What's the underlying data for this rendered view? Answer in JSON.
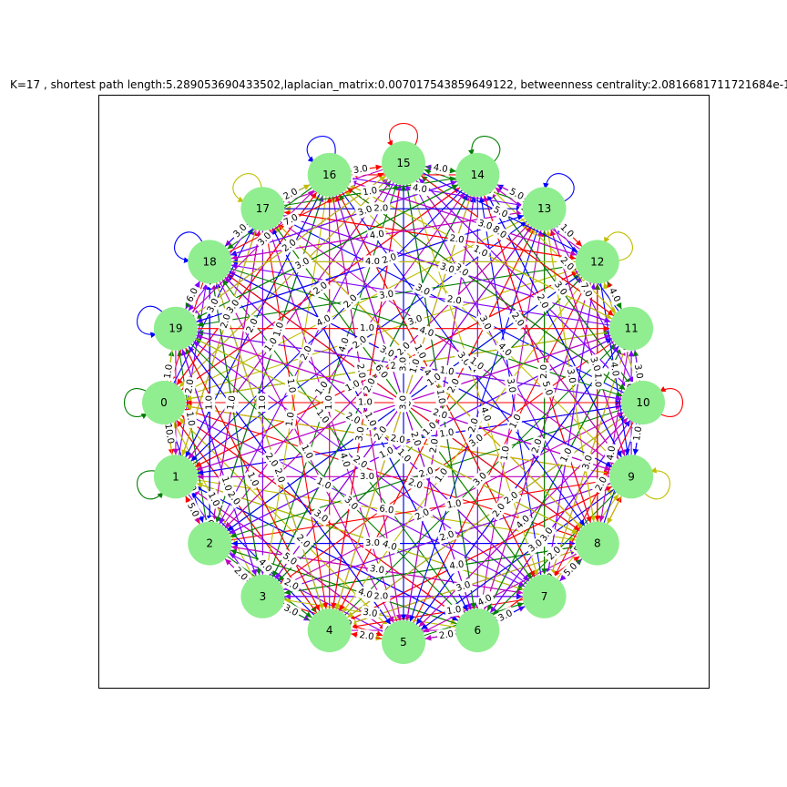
{
  "figure": {
    "title": "K=17 , shortest path length:5.289053690433502,laplacian_matrix:0.007017543859649122, betweenness centrality:2.0816681711721684e-1"
  },
  "graph": {
    "node_color": "#90ee90",
    "edge_colors": [
      "#ff0000",
      "#0000ff",
      "#008000",
      "#bfbf00",
      "#bf00bf",
      "#7f00ff"
    ],
    "nodes": [
      "0",
      "1",
      "2",
      "3",
      "4",
      "5",
      "6",
      "7",
      "8",
      "9",
      "10",
      "11",
      "12",
      "13",
      "14",
      "15",
      "16",
      "17",
      "18",
      "19"
    ],
    "self_loops": [
      {
        "node": "0",
        "color": "#008000"
      },
      {
        "node": "1",
        "color": "#008000"
      },
      {
        "node": "10",
        "color": "#ff0000"
      },
      {
        "node": "9",
        "color": "#bfbf00"
      },
      {
        "node": "13",
        "color": "#0000ff"
      },
      {
        "node": "12",
        "color": "#bfbf00"
      },
      {
        "node": "14",
        "color": "#008000"
      },
      {
        "node": "15",
        "color": "#ff0000"
      },
      {
        "node": "16",
        "color": "#0000ff"
      },
      {
        "node": "17",
        "color": "#bfbf00"
      },
      {
        "node": "18",
        "color": "#0000ff"
      },
      {
        "node": "19",
        "color": "#0000ff"
      }
    ],
    "edge_labels": [
      {
        "source": "16",
        "target": "15",
        "label": "3.0"
      },
      {
        "source": "15",
        "target": "14",
        "label": "4.0"
      },
      {
        "source": "14",
        "target": "13",
        "label": "5.0"
      },
      {
        "source": "13",
        "target": "12",
        "label": "1.0"
      },
      {
        "source": "12",
        "target": "11",
        "label": "4.0"
      },
      {
        "source": "11",
        "target": "10",
        "label": "3.0"
      },
      {
        "source": "10",
        "target": "9",
        "label": "1.0"
      },
      {
        "source": "8",
        "target": "7",
        "label": "5.0"
      },
      {
        "source": "7",
        "target": "6",
        "label": "3.0"
      },
      {
        "source": "6",
        "target": "5",
        "label": "2.0"
      },
      {
        "source": "5",
        "target": "4",
        "label": "2.0"
      },
      {
        "source": "4",
        "target": "3",
        "label": "3.0"
      },
      {
        "source": "3",
        "target": "2",
        "label": "2.0"
      },
      {
        "source": "2",
        "target": "1",
        "label": "5.0"
      },
      {
        "source": "1",
        "target": "0",
        "label": "10.0"
      },
      {
        "source": "0",
        "target": "19",
        "label": "1.0"
      },
      {
        "source": "19",
        "target": "18",
        "label": "6.0"
      },
      {
        "source": "18",
        "target": "17",
        "label": "3.0"
      },
      {
        "source": "17",
        "target": "16",
        "label": "2.0"
      },
      {
        "source": "16",
        "target": "14",
        "label": "2.0"
      },
      {
        "source": "15",
        "target": "13",
        "label": "3.0"
      },
      {
        "source": "14",
        "target": "12",
        "label": "2.0"
      },
      {
        "source": "13",
        "target": "11",
        "label": "1.0"
      },
      {
        "source": "12",
        "target": "10",
        "label": "1.0"
      },
      {
        "source": "11",
        "target": "9",
        "label": "3.0"
      },
      {
        "source": "10",
        "target": "8",
        "label": "2.0"
      },
      {
        "source": "9",
        "target": "7",
        "label": "5.0"
      },
      {
        "source": "8",
        "target": "6",
        "label": "1.0"
      },
      {
        "source": "7",
        "target": "5",
        "label": "5.0"
      },
      {
        "source": "6",
        "target": "4",
        "label": "4.0"
      },
      {
        "source": "5",
        "target": "3",
        "label": "2.0"
      },
      {
        "source": "4",
        "target": "2",
        "label": "2.0"
      },
      {
        "source": "3",
        "target": "1",
        "label": "6.0"
      },
      {
        "source": "2",
        "target": "0",
        "label": "4.0"
      },
      {
        "source": "1",
        "target": "19",
        "label": "2.0"
      },
      {
        "source": "0",
        "target": "18",
        "label": "3.0"
      },
      {
        "source": "19",
        "target": "17",
        "label": "2.0"
      },
      {
        "source": "18",
        "target": "16",
        "label": "4.0"
      },
      {
        "source": "17",
        "target": "15",
        "label": "1.0"
      },
      {
        "source": "16",
        "target": "13",
        "label": "4.0"
      },
      {
        "source": "15",
        "target": "12",
        "label": "5.0"
      },
      {
        "source": "14",
        "target": "11",
        "label": "2.0"
      },
      {
        "source": "13",
        "target": "10",
        "label": "7.0"
      },
      {
        "source": "12",
        "target": "9",
        "label": "4.0"
      },
      {
        "source": "11",
        "target": "8",
        "label": "4.0"
      },
      {
        "source": "10",
        "target": "7",
        "label": "2.0"
      },
      {
        "source": "9",
        "target": "6",
        "label": "2.0"
      },
      {
        "source": "8",
        "target": "5",
        "label": "4.0"
      },
      {
        "source": "7",
        "target": "4",
        "label": "1.0"
      },
      {
        "source": "6",
        "target": "3",
        "label": "3.0"
      },
      {
        "source": "5",
        "target": "2",
        "label": "2.0"
      },
      {
        "source": "4",
        "target": "1",
        "label": "4.0"
      },
      {
        "source": "3",
        "target": "0",
        "label": "1.0"
      },
      {
        "source": "2",
        "target": "19",
        "label": "1.0"
      },
      {
        "source": "1",
        "target": "18",
        "label": "2.0"
      },
      {
        "source": "0",
        "target": "17",
        "label": "3.0"
      },
      {
        "source": "19",
        "target": "16",
        "label": "3.0"
      },
      {
        "source": "18",
        "target": "15",
        "label": "7.0"
      },
      {
        "source": "17",
        "target": "14",
        "label": "1.0"
      },
      {
        "source": "16",
        "target": "12",
        "label": "3.0"
      },
      {
        "source": "15",
        "target": "11",
        "label": "8.0"
      },
      {
        "source": "14",
        "target": "10",
        "label": "3.0"
      },
      {
        "source": "13",
        "target": "9",
        "label": "3.0"
      },
      {
        "source": "12",
        "target": "8",
        "label": "1.0"
      },
      {
        "source": "11",
        "target": "7",
        "label": "3.0"
      },
      {
        "source": "10",
        "target": "6",
        "label": "3.0"
      },
      {
        "source": "9",
        "target": "5",
        "label": "3.0"
      },
      {
        "source": "8",
        "target": "4",
        "label": "3.0"
      },
      {
        "source": "7",
        "target": "3",
        "label": "2.0"
      },
      {
        "source": "6",
        "target": "2",
        "label": "4.0"
      },
      {
        "source": "5",
        "target": "1",
        "label": "5.0"
      },
      {
        "source": "4",
        "target": "0",
        "label": "2.0"
      },
      {
        "source": "3",
        "target": "19",
        "label": "1.0"
      },
      {
        "source": "2",
        "target": "18",
        "label": "1.0"
      },
      {
        "source": "1",
        "target": "17",
        "label": "2.0"
      },
      {
        "source": "0",
        "target": "16",
        "label": "3.0"
      },
      {
        "source": "19",
        "target": "15",
        "label": "2.0"
      },
      {
        "source": "18",
        "target": "14",
        "label": "3.0"
      },
      {
        "source": "17",
        "target": "13",
        "label": "2.0"
      },
      {
        "source": "16",
        "target": "11",
        "label": "1.0"
      },
      {
        "source": "15",
        "target": "10",
        "label": "6.0"
      },
      {
        "source": "14",
        "target": "9",
        "label": "2.0"
      },
      {
        "source": "13",
        "target": "8",
        "label": "3.0"
      },
      {
        "source": "12",
        "target": "7",
        "label": "4.0"
      },
      {
        "source": "11",
        "target": "6",
        "label": "1.0"
      },
      {
        "source": "10",
        "target": "5",
        "label": "4.0"
      },
      {
        "source": "9",
        "target": "4",
        "label": "2.0"
      },
      {
        "source": "8",
        "target": "3",
        "label": "4.0"
      },
      {
        "source": "7",
        "target": "2",
        "label": "3.0"
      },
      {
        "source": "6",
        "target": "1",
        "label": "2.0"
      },
      {
        "source": "5",
        "target": "0",
        "label": "2.0"
      },
      {
        "source": "4",
        "target": "19",
        "label": "1.0"
      },
      {
        "source": "3",
        "target": "18",
        "label": "2.0"
      },
      {
        "source": "2",
        "target": "17",
        "label": "1.0"
      },
      {
        "source": "1",
        "target": "16",
        "label": "2.0"
      },
      {
        "source": "0",
        "target": "15",
        "label": "1.0"
      },
      {
        "source": "19",
        "target": "14",
        "label": "3.0"
      },
      {
        "source": "18",
        "target": "13",
        "label": "4.0"
      },
      {
        "source": "17",
        "target": "12",
        "label": "2.0"
      },
      {
        "source": "16",
        "target": "10",
        "label": "3.0"
      },
      {
        "source": "15",
        "target": "9",
        "label": "2.0"
      },
      {
        "source": "14",
        "target": "8",
        "label": "5.0"
      },
      {
        "source": "13",
        "target": "7",
        "label": "2.0"
      },
      {
        "source": "12",
        "target": "6",
        "label": "2.0"
      },
      {
        "source": "11",
        "target": "5",
        "label": "2.0"
      },
      {
        "source": "10",
        "target": "4",
        "label": "2.0"
      },
      {
        "source": "9",
        "target": "3",
        "label": "2.0"
      },
      {
        "source": "8",
        "target": "2",
        "label": "3.0"
      },
      {
        "source": "7",
        "target": "1",
        "label": "4.0"
      },
      {
        "source": "6",
        "target": "0",
        "label": "3.0"
      },
      {
        "source": "5",
        "target": "19",
        "label": "2.0"
      },
      {
        "source": "4",
        "target": "18",
        "label": "2.0"
      },
      {
        "source": "3",
        "target": "17",
        "label": "1.0"
      },
      {
        "source": "2",
        "target": "16",
        "label": "1.0"
      },
      {
        "source": "1",
        "target": "15",
        "label": "1.0"
      },
      {
        "source": "0",
        "target": "14",
        "label": "2.0"
      },
      {
        "source": "19",
        "target": "13",
        "label": "2.0"
      },
      {
        "source": "18",
        "target": "12",
        "label": "4.0"
      },
      {
        "source": "17",
        "target": "11",
        "label": "3.0"
      },
      {
        "source": "16",
        "target": "9",
        "label": "4.0"
      },
      {
        "source": "15",
        "target": "8",
        "label": "3.0"
      },
      {
        "source": "14",
        "target": "7",
        "label": "3.0"
      },
      {
        "source": "13",
        "target": "6",
        "label": "1.0"
      },
      {
        "source": "12",
        "target": "5",
        "label": "1.0"
      },
      {
        "source": "11",
        "target": "4",
        "label": "3.0"
      },
      {
        "source": "10",
        "target": "3",
        "label": "2.0"
      },
      {
        "source": "9",
        "target": "2",
        "label": "1.0"
      },
      {
        "source": "8",
        "target": "1",
        "label": "6.0"
      },
      {
        "source": "7",
        "target": "0",
        "label": "1.0"
      },
      {
        "source": "6",
        "target": "19",
        "label": "3.0"
      },
      {
        "source": "5",
        "target": "18",
        "label": "1.0"
      },
      {
        "source": "4",
        "target": "17",
        "label": "1.0"
      },
      {
        "source": "3",
        "target": "16",
        "label": "1.0"
      },
      {
        "source": "2",
        "target": "15",
        "label": "2.0"
      },
      {
        "source": "1",
        "target": "14",
        "label": "2.0"
      },
      {
        "source": "0",
        "target": "13",
        "label": "4.0"
      },
      {
        "source": "19",
        "target": "12",
        "label": "3.0"
      },
      {
        "source": "18",
        "target": "11",
        "label": "2.0"
      },
      {
        "source": "17",
        "target": "10",
        "label": "3.0"
      },
      {
        "source": "16",
        "target": "8",
        "label": "3.0"
      },
      {
        "source": "15",
        "target": "7",
        "label": "4.0"
      },
      {
        "source": "14",
        "target": "6",
        "label": "1.0"
      },
      {
        "source": "13",
        "target": "5",
        "label": "2.0"
      },
      {
        "source": "12",
        "target": "4",
        "label": "1.0"
      },
      {
        "source": "11",
        "target": "3",
        "label": "3.0"
      },
      {
        "source": "10",
        "target": "2",
        "label": "2.0"
      },
      {
        "source": "9",
        "target": "1",
        "label": "3.0"
      },
      {
        "source": "8",
        "target": "0",
        "label": "2.0"
      },
      {
        "source": "7",
        "target": "19",
        "label": "2.0"
      },
      {
        "source": "6",
        "target": "18",
        "label": "1.0"
      },
      {
        "source": "5",
        "target": "17",
        "label": "4.0"
      },
      {
        "source": "4",
        "target": "16",
        "label": "1.0"
      },
      {
        "source": "3",
        "target": "15",
        "label": "4.0"
      },
      {
        "source": "2",
        "target": "14",
        "label": "1.0"
      },
      {
        "source": "1",
        "target": "13",
        "label": "2.0"
      },
      {
        "source": "0",
        "target": "12",
        "label": "3.0"
      },
      {
        "source": "19",
        "target": "11",
        "label": "1.0"
      },
      {
        "source": "18",
        "target": "10",
        "label": "4.0"
      },
      {
        "source": "17",
        "target": "9",
        "label": "1.0"
      },
      {
        "source": "16",
        "target": "7",
        "label": "1.0"
      },
      {
        "source": "15",
        "target": "6",
        "label": "1.0"
      },
      {
        "source": "14",
        "target": "5",
        "label": "2.0"
      },
      {
        "source": "13",
        "target": "4",
        "label": "2.0"
      },
      {
        "source": "12",
        "target": "3",
        "label": "1.0"
      },
      {
        "source": "11",
        "target": "2",
        "label": "1.0"
      },
      {
        "source": "10",
        "target": "1",
        "label": "1.0"
      },
      {
        "source": "9",
        "target": "0",
        "label": "2.0"
      },
      {
        "source": "8",
        "target": "19",
        "label": "2.0"
      },
      {
        "source": "7",
        "target": "18",
        "label": "1.0"
      },
      {
        "source": "6",
        "target": "17",
        "label": "1.0"
      },
      {
        "source": "5",
        "target": "16",
        "label": "2.0"
      },
      {
        "source": "4",
        "target": "15",
        "label": "3.0"
      },
      {
        "source": "3",
        "target": "14",
        "label": "2.0"
      },
      {
        "source": "2",
        "target": "13",
        "label": "2.0"
      },
      {
        "source": "1",
        "target": "12",
        "label": "1.0"
      },
      {
        "source": "0",
        "target": "11",
        "label": "2.0"
      },
      {
        "source": "19",
        "target": "10",
        "label": "1.0"
      },
      {
        "source": "18",
        "target": "9",
        "label": "3.0"
      },
      {
        "source": "17",
        "target": "8",
        "label": "4.0"
      },
      {
        "source": "16",
        "target": "6",
        "label": "6.0"
      },
      {
        "source": "15",
        "target": "5",
        "label": "3.0"
      },
      {
        "source": "14",
        "target": "4",
        "label": "2.0"
      },
      {
        "source": "13",
        "target": "3",
        "label": "3.0"
      },
      {
        "source": "12",
        "target": "2",
        "label": "1.0"
      },
      {
        "source": "11",
        "target": "1",
        "label": "1.0"
      },
      {
        "source": "10",
        "target": "0",
        "label": "1.0"
      },
      {
        "source": "9",
        "target": "19",
        "label": "2.0"
      },
      {
        "source": "8",
        "target": "18",
        "label": "1.0"
      },
      {
        "source": "7",
        "target": "17",
        "label": "6.0"
      },
      {
        "source": "6",
        "target": "16",
        "label": "2.0"
      },
      {
        "source": "5",
        "target": "15",
        "label": "3.0"
      },
      {
        "source": "4",
        "target": "14",
        "label": "1.0"
      },
      {
        "source": "3",
        "target": "13",
        "label": "2.0"
      }
    ]
  }
}
